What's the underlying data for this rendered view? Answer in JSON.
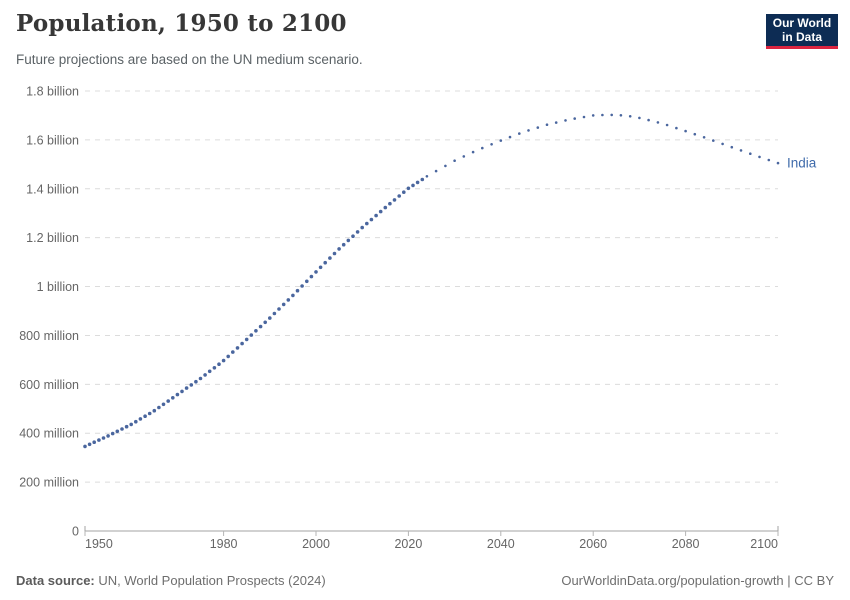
{
  "header": {
    "title": "Population, 1950 to 2100",
    "subtitle": "Future projections are based on the UN medium scenario.",
    "logo": {
      "line1": "Our World",
      "line2": "in Data",
      "bg_color": "#0d2c54",
      "accent_color": "#dc2440"
    }
  },
  "chart_data": {
    "type": "line",
    "title": "Population, 1950 to 2100",
    "subtitle": "Future projections are based on the UN medium scenario.",
    "unit": "million people",
    "xlim": [
      1950,
      2100
    ],
    "ylim": [
      0,
      1800
    ],
    "grid": "dashed horizontal",
    "legend_position": "end-of-line",
    "x_ticks": [
      1950,
      1980,
      2000,
      2020,
      2040,
      2060,
      2080,
      2100
    ],
    "y_ticks": [
      {
        "value": 1800,
        "label": "1.8 billion"
      },
      {
        "value": 1600,
        "label": "1.6 billion"
      },
      {
        "value": 1400,
        "label": "1.4 billion"
      },
      {
        "value": 1200,
        "label": "1.2 billion"
      },
      {
        "value": 1000,
        "label": "1 billion"
      },
      {
        "value": 800,
        "label": "800 million"
      },
      {
        "value": 600,
        "label": "600 million"
      },
      {
        "value": 400,
        "label": "400 million"
      },
      {
        "value": 200,
        "label": "200 million"
      },
      {
        "value": 0,
        "label": "0"
      }
    ],
    "series": [
      {
        "name": "India",
        "color": "#4a669e",
        "label_color": "#3f6bab",
        "segments": [
          {
            "kind": "historical",
            "style": "dense-dots",
            "points": [
              [
                1950,
                346
              ],
              [
                1955,
                389
              ],
              [
                1960,
                436
              ],
              [
                1965,
                492
              ],
              [
                1970,
                558
              ],
              [
                1975,
                624
              ],
              [
                1980,
                697
              ],
              [
                1985,
                784
              ],
              [
                1990,
                871
              ],
              [
                1995,
                964
              ],
              [
                2000,
                1060
              ],
              [
                2005,
                1154
              ],
              [
                2010,
                1241
              ],
              [
                2015,
                1323
              ],
              [
                2020,
                1402
              ],
              [
                2023,
                1438
              ]
            ]
          },
          {
            "kind": "projection",
            "style": "sparse-dots",
            "points": [
              [
                2024,
                1451
              ],
              [
                2030,
                1515
              ],
              [
                2035,
                1559
              ],
              [
                2040,
                1597
              ],
              [
                2045,
                1633
              ],
              [
                2050,
                1662
              ],
              [
                2055,
                1684
              ],
              [
                2060,
                1700
              ],
              [
                2063,
                1703
              ],
              [
                2067,
                1700
              ],
              [
                2070,
                1690
              ],
              [
                2075,
                1667
              ],
              [
                2080,
                1636
              ],
              [
                2085,
                1604
              ],
              [
                2090,
                1570
              ],
              [
                2095,
                1537
              ],
              [
                2100,
                1505
              ]
            ]
          }
        ]
      }
    ],
    "colors": {
      "grid": "#dcdcdc",
      "axis": "#a3a3a3",
      "tick": "#b5b5b5",
      "tick_text": "#666666"
    }
  },
  "footer": {
    "source_label": "Data source:",
    "source_text": " UN, World Population Prospects (2024)",
    "credit": "OurWorldinData.org/population-growth | CC BY"
  }
}
